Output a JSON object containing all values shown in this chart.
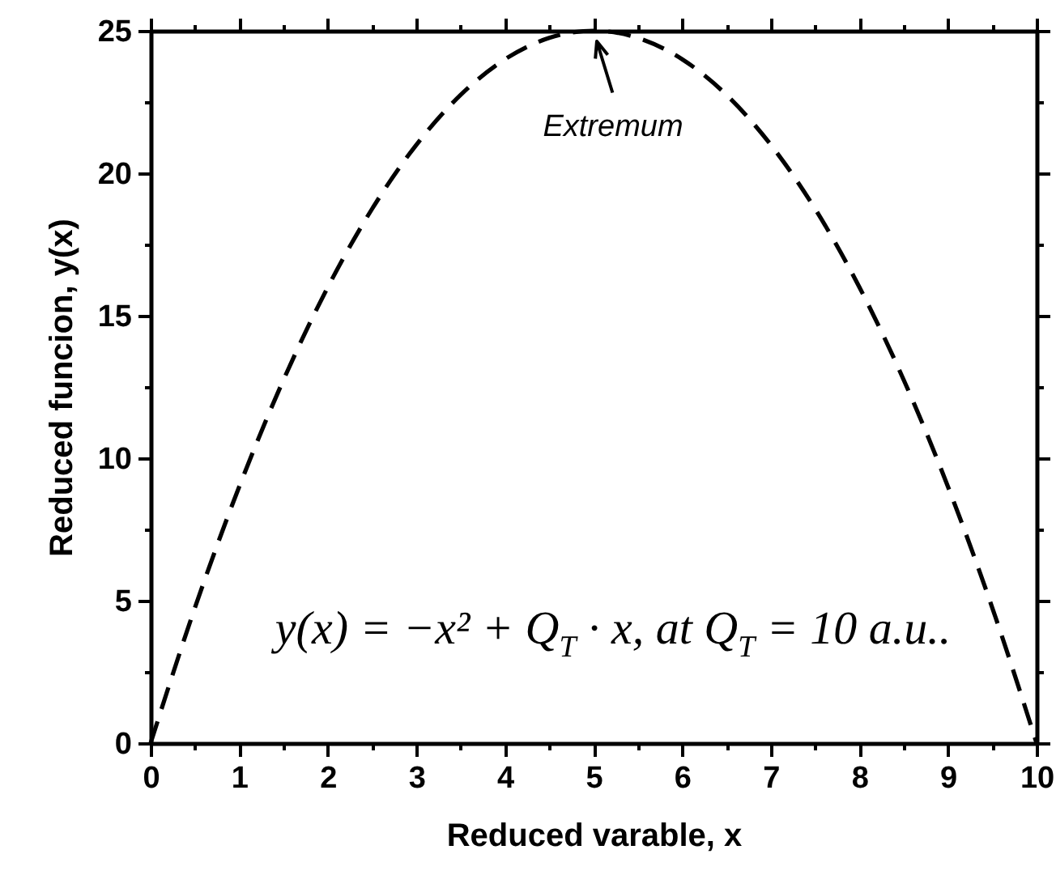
{
  "chart_data": {
    "type": "line",
    "xlabel": "Reduced varable, x",
    "ylabel": "Reduced funcion, y(x)",
    "x": [
      0,
      0.5,
      1,
      1.5,
      2,
      2.5,
      3,
      3.5,
      4,
      4.5,
      5,
      5.5,
      6,
      6.5,
      7,
      7.5,
      8,
      8.5,
      9,
      9.5,
      10
    ],
    "series": [
      {
        "color": "#000000",
        "values": [
          0,
          4.75,
          9,
          12.75,
          16,
          18.75,
          21,
          22.75,
          24,
          24.75,
          25,
          24.75,
          24,
          22.75,
          21,
          18.75,
          16,
          12.75,
          9,
          4.75,
          0
        ]
      }
    ],
    "line_style": "dashed",
    "xlim": [
      0,
      10
    ],
    "ylim": [
      0,
      25
    ],
    "xticks": [
      0,
      {
        "value": 0.5,
        "label": null
      },
      1,
      {
        "value": 1.5,
        "label": null
      },
      2,
      {
        "value": 2.5,
        "label": null
      },
      3,
      {
        "value": 3.5,
        "label": null
      },
      4,
      {
        "value": 4.5,
        "label": null
      },
      5,
      {
        "value": 5.5,
        "label": null
      },
      6,
      {
        "value": 6.5,
        "label": null
      },
      7,
      {
        "value": 7.5,
        "label": null
      },
      8,
      {
        "value": 8.5,
        "label": null
      },
      9,
      {
        "value": 9.5,
        "label": null
      },
      10
    ],
    "yticks": [
      0,
      {
        "value": 2.5,
        "label": null
      },
      5,
      {
        "value": 7.5,
        "label": null
      },
      10,
      {
        "value": 12.5,
        "label": null
      },
      15,
      {
        "value": 17.5,
        "label": null
      },
      20,
      {
        "value": 22.5,
        "label": null
      },
      25
    ],
    "annotations": [
      {
        "text": "Extremum",
        "x": 5,
        "y": 25
      },
      "y(x) = −x² + Q$_{T}$ · x, at Q$_{T}$ = 10 a.u.."
    ]
  }
}
